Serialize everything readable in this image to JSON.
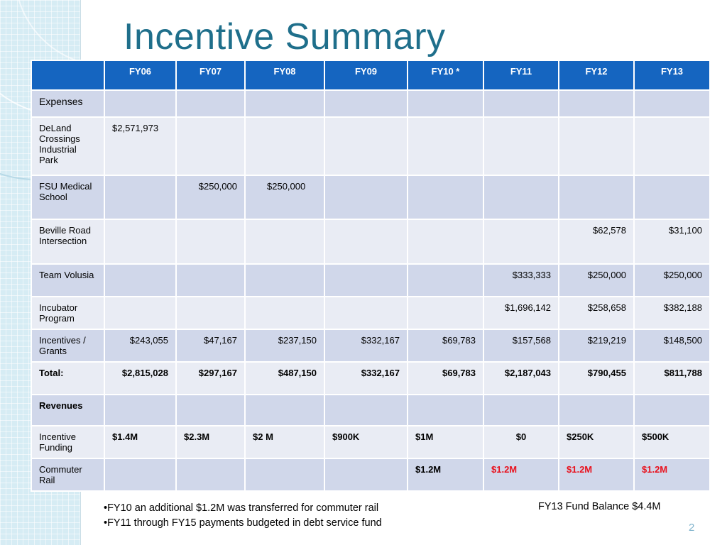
{
  "slide": {
    "title": "Incentive Summary",
    "slide_number": "2"
  },
  "table": {
    "headers": [
      "",
      "FY06",
      "FY07",
      "FY08",
      "FY09",
      "FY10 *",
      "FY11",
      "FY12",
      "FY13"
    ],
    "expenses_label": "Expenses",
    "rows": [
      {
        "label": "DeLand Crossings Industrial Park",
        "values": [
          "$2,571,973",
          "",
          "",
          "",
          "",
          "",
          "",
          ""
        ]
      },
      {
        "label": "FSU Medical School",
        "values": [
          "",
          "$250,000",
          "$250,000",
          "",
          "",
          "",
          "",
          ""
        ]
      },
      {
        "label": "Beville Road Intersection",
        "values": [
          "",
          "",
          "",
          "",
          "",
          "",
          "$62,578",
          "$31,100"
        ]
      },
      {
        "label": "Team Volusia",
        "values": [
          "",
          "",
          "",
          "",
          "",
          "$333,333",
          "$250,000",
          "$250,000"
        ]
      },
      {
        "label": "Incubator Program",
        "values": [
          "",
          "",
          "",
          "",
          "",
          "$1,696,142",
          "$258,658",
          "$382,188"
        ]
      },
      {
        "label": "Incentives / Grants",
        "values": [
          "$243,055",
          "$47,167",
          "$237,150",
          "$332,167",
          "$69,783",
          "$157,568",
          "$219,219",
          "$148,500"
        ]
      }
    ],
    "total": {
      "label": "Total:",
      "values": [
        "$2,815,028",
        "$297,167",
        "$487,150",
        "$332,167",
        "$69,783",
        "$2,187,043",
        "$790,455",
        "$811,788"
      ]
    },
    "revenues_label": "Revenues",
    "incentive_funding": {
      "label": "Incentive Funding",
      "values": [
        "$1.4M",
        "$2.3M",
        "$2 M",
        "$900K",
        "$1M",
        "$0",
        "$250K",
        "$500K"
      ]
    },
    "commuter_rail": {
      "label": "Commuter Rail",
      "values": [
        "",
        "",
        "",
        "",
        "$1.2M",
        "$1.2M",
        "$1.2M",
        "$1.2M"
      ]
    }
  },
  "notes": {
    "line1": "•FY10 an additional $1.2M was transferred for commuter rail",
    "line2": "•FY11 through FY15 payments budgeted in debt service fund",
    "fund_balance": "FY13 Fund Balance $4.4M"
  },
  "colors": {
    "header_bg": "#1565c0",
    "title": "#1f6f8b",
    "row_light": "#e9ecf4",
    "row_dark": "#d0d7ea",
    "highlight_red": "#e8111d"
  }
}
